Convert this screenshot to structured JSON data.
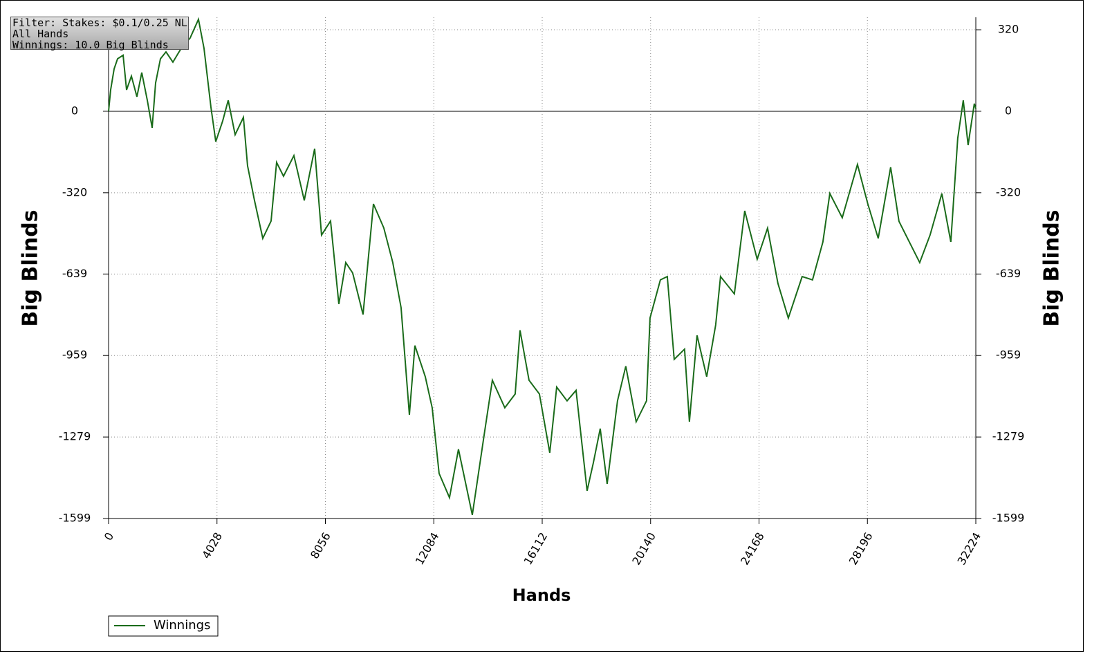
{
  "chart_data": {
    "type": "line",
    "annotations": [
      "Filter: Stakes: $0.1/0.25 NL",
      "All Hands",
      "Winnings: 10.0 Big Blinds"
    ],
    "xlabel": "Hands",
    "ylabel": "Big Blinds",
    "y2label": "Big Blinds",
    "xlim": [
      0,
      32224
    ],
    "xticks": [
      0,
      4028,
      8056,
      12084,
      16112,
      20140,
      24168,
      28196,
      32224
    ],
    "ylim": [
      -1599,
      369
    ],
    "yticks": [
      -1599,
      -1279,
      -959,
      -639,
      -320,
      0,
      320
    ],
    "y2lim": [
      -1599,
      369
    ],
    "y2ticks": [
      -1599,
      -1279,
      -959,
      -639,
      -320,
      0,
      320
    ],
    "grid": true,
    "legend": "bottom-left",
    "x": [
      0,
      77,
      205,
      334,
      540,
      668,
      848,
      1053,
      1233,
      1439,
      1619,
      1747,
      1927,
      2133,
      2390,
      2698,
      3032,
      3340,
      3546,
      3803,
      3983,
      4240,
      4445,
      4702,
      5010,
      5164,
      5421,
      5730,
      6038,
      6243,
      6500,
      6886,
      7271,
      7657,
      7913,
      8248,
      8556,
      8813,
      9070,
      9455,
      9841,
      10226,
      10560,
      10868,
      11177,
      11382,
      11767,
      12024,
      12281,
      12667,
      13001,
      13515,
      13952,
      14260,
      14723,
      15108,
      15288,
      15622,
      16008,
      16393,
      16650,
      17036,
      17370,
      17780,
      18011,
      18268,
      18525,
      18910,
      19218,
      19604,
      19989,
      20118,
      20503,
      20760,
      21017,
      21402,
      21582,
      21865,
      22224,
      22558,
      22738,
      23252,
      23638,
      24100,
      24486,
      24871,
      25257,
      25771,
      26156,
      26542,
      26799,
      27261,
      27826,
      28211,
      28597,
      29059,
      29368,
      29753,
      30139,
      30524,
      30961,
      31295,
      31552,
      31758,
      31937,
      32168,
      32224
    ],
    "series": [
      {
        "name": "Winnings",
        "color": "#1a6b1a",
        "values": [
          0,
          84,
          166,
          206,
          220,
          84,
          138,
          57,
          152,
          43,
          -65,
          111,
          206,
          233,
          193,
          247,
          288,
          361,
          247,
          16,
          -119,
          -38,
          43,
          -92,
          -24,
          -214,
          -350,
          -499,
          -431,
          -201,
          -255,
          -174,
          -350,
          -147,
          -486,
          -431,
          -757,
          -594,
          -635,
          -798,
          -364,
          -458,
          -594,
          -771,
          -1192,
          -920,
          -1042,
          -1164,
          -1422,
          -1517,
          -1327,
          -1585,
          -1273,
          -1056,
          -1164,
          -1110,
          -860,
          -1056,
          -1110,
          -1341,
          -1083,
          -1137,
          -1096,
          -1490,
          -1381,
          -1246,
          -1463,
          -1137,
          -1001,
          -1219,
          -1137,
          -812,
          -662,
          -649,
          -974,
          -934,
          -1219,
          -880,
          -1042,
          -839,
          -649,
          -717,
          -391,
          -581,
          -459,
          -676,
          -812,
          -649,
          -662,
          -513,
          -323,
          -418,
          -209,
          -364,
          -499,
          -220,
          -432,
          -513,
          -594,
          -486,
          -323,
          -513,
          -106,
          43,
          -133,
          30,
          10
        ]
      }
    ]
  }
}
